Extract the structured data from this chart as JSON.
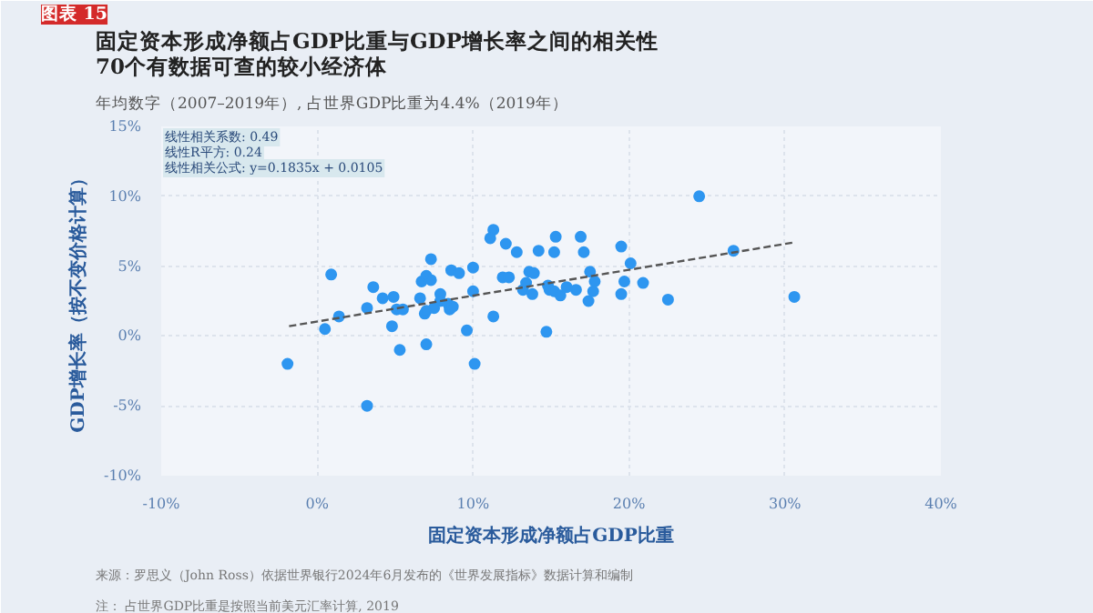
{
  "chart_data": {
    "type": "scatter",
    "title": "固定资本形成净额占GDP比重与GDP增长率之间的相关性\n70个有数据可查的较小经济体",
    "subtitle": "年均数字（2007–2019年）, 占世界GDP比重为4.4%（2019年）",
    "xlabel": "固定资本形成净额占GDP比重",
    "ylabel": "GDP增长率（按不变价格计算）",
    "annotations": [
      "图表 15",
      "线性相关系数: 0.49",
      "线性R平方: 0.24",
      "线性相关公式: y=0.1835x + 0.0105",
      "来源：罗思义（John Ross）依据世界银行2024年6月发布的《世界发展指标》数据计算和编制",
      "注：    占世界GDP比重是按照当前美元汇率计算, 2019"
    ],
    "xlim": [
      -10,
      40
    ],
    "ylim": [
      -10,
      15
    ],
    "xticks": [
      {
        "value": -10,
        "label": "-10%"
      },
      {
        "value": 0,
        "label": "0%"
      },
      {
        "value": 10,
        "label": "10%"
      },
      {
        "value": 20,
        "label": "20%"
      },
      {
        "value": 30,
        "label": "30%"
      },
      {
        "value": 40,
        "label": "40%"
      }
    ],
    "yticks": [
      {
        "value": -10,
        "label": "-10%"
      },
      {
        "value": -5,
        "label": "-5%"
      },
      {
        "value": 0,
        "label": "0%"
      },
      {
        "value": 5,
        "label": "5%"
      },
      {
        "value": 10,
        "label": "10%"
      },
      {
        "value": 15,
        "label": "15%"
      }
    ],
    "grid": true,
    "marker": "circle",
    "series": [
      {
        "type": "scatter",
        "color": "#2e96f0",
        "x": [
          -1.9,
          0.5,
          0.9,
          1.4,
          3.2,
          3.2,
          3.6,
          4.2,
          4.8,
          4.9,
          5.1,
          5.5,
          5.3,
          6.6,
          6.7,
          7.0,
          6.9,
          7.0,
          7.0,
          7.3,
          7.3,
          7.5,
          7.9,
          7.9,
          8.4,
          8.5,
          8.6,
          8.7,
          9.1,
          9.6,
          10.0,
          10.0,
          10.1,
          11.1,
          11.3,
          11.3,
          11.9,
          12.1,
          12.3,
          12.8,
          13.2,
          13.4,
          13.6,
          13.9,
          13.8,
          14.2,
          14.7,
          14.8,
          14.9,
          15.2,
          15.2,
          15.3,
          15.6,
          16.0,
          16.6,
          16.9,
          17.1,
          17.5,
          17.4,
          17.8,
          17.7,
          19.5,
          19.5,
          19.7,
          20.1,
          20.9,
          22.5,
          24.5,
          26.7,
          30.6
        ],
        "values": [
          -2.0,
          0.5,
          4.4,
          1.4,
          2.0,
          -5.0,
          3.5,
          2.7,
          0.7,
          2.8,
          1.9,
          1.9,
          -1.0,
          2.7,
          3.9,
          4.3,
          1.6,
          -0.6,
          1.8,
          5.5,
          4.0,
          2.0,
          3.0,
          2.5,
          2.3,
          1.9,
          4.7,
          2.1,
          4.5,
          0.4,
          3.2,
          4.9,
          -2.0,
          7.0,
          7.6,
          1.4,
          4.2,
          6.6,
          4.2,
          6.0,
          3.3,
          3.8,
          4.6,
          4.5,
          3.0,
          6.1,
          0.3,
          3.6,
          3.3,
          3.2,
          6.0,
          7.1,
          2.9,
          3.5,
          3.3,
          7.1,
          6.0,
          4.6,
          2.5,
          3.9,
          3.2,
          3.0,
          6.4,
          3.9,
          5.2,
          3.8,
          2.6,
          10.0,
          6.1,
          2.8
        ]
      },
      {
        "type": "line",
        "color": "#555555",
        "line_style": "dashed",
        "marker": "none",
        "x": [
          -1.8,
          30.6
        ],
        "values": [
          0.7,
          6.7
        ]
      }
    ]
  }
}
